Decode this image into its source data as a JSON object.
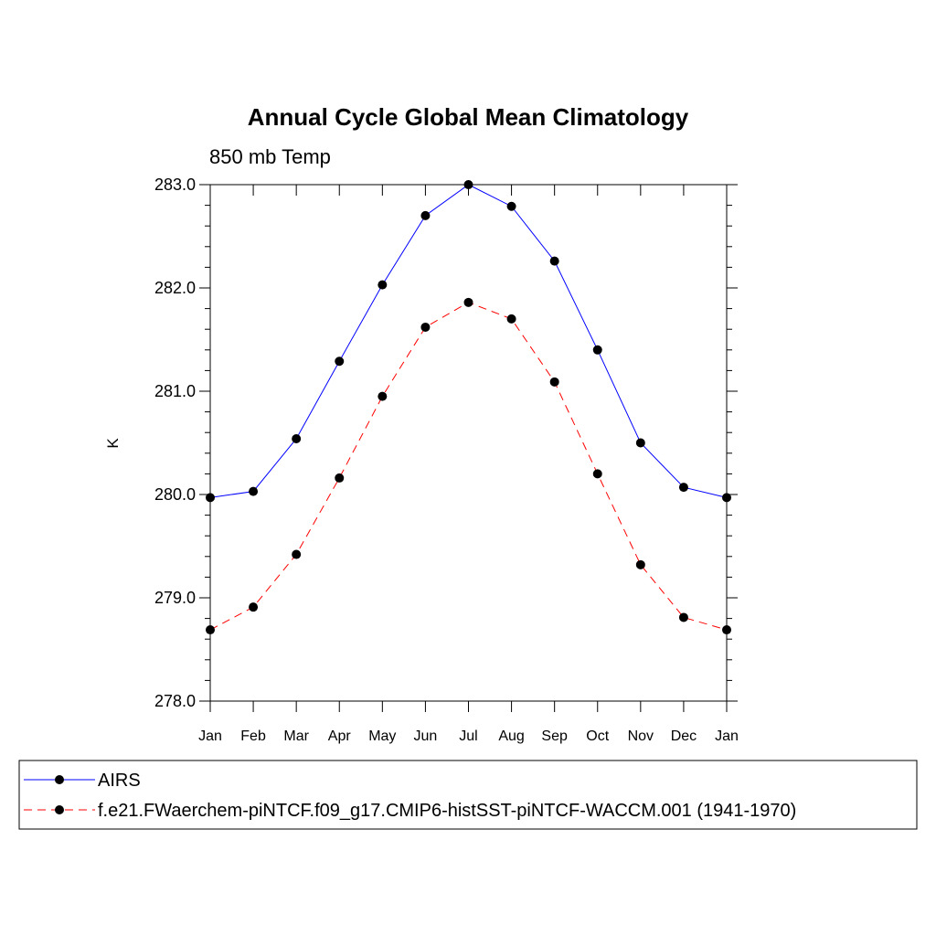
{
  "chart_data": {
    "type": "line",
    "title": "Annual Cycle Global Mean Climatology",
    "subtitle": "850 mb Temp",
    "xlabel": "",
    "ylabel": "K",
    "categories": [
      "Jan",
      "Feb",
      "Mar",
      "Apr",
      "May",
      "Jun",
      "Jul",
      "Aug",
      "Sep",
      "Oct",
      "Nov",
      "Dec",
      "Jan"
    ],
    "ylim": [
      278.0,
      283.0
    ],
    "yticks": [
      "278.0",
      "279.0",
      "280.0",
      "281.0",
      "282.0",
      "283.0"
    ],
    "series": [
      {
        "name": "AIRS",
        "color": "#0000ff",
        "dash": "solid",
        "values": [
          279.97,
          280.03,
          280.54,
          281.29,
          282.03,
          282.7,
          283.0,
          282.79,
          282.26,
          281.4,
          280.5,
          280.07,
          279.97
        ]
      },
      {
        "name": "f.e21.FWaerchem-piNTCF.f09_g17.CMIP6-histSST-piNTCF-WACCM.001 (1941-1970)",
        "color": "#ff0000",
        "dash": "dashed",
        "values": [
          278.69,
          278.91,
          279.42,
          280.16,
          280.95,
          281.62,
          281.86,
          281.7,
          281.09,
          280.2,
          279.32,
          278.81,
          278.69
        ]
      }
    ],
    "legend": {
      "position": "bottom"
    }
  }
}
